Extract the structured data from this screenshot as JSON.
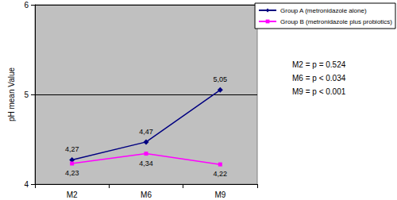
{
  "chart_data": {
    "type": "line",
    "y_label": "pH mean Value",
    "categories": [
      "M2",
      "M6",
      "M9"
    ],
    "series": [
      {
        "name": "Group A (metronidazole alone)",
        "color": "#000080",
        "marker": "diamond",
        "values": [
          4.27,
          4.47,
          5.05
        ],
        "value_labels": [
          "4,27",
          "4,47",
          "5,05"
        ]
      },
      {
        "name": "Group B (metronidazole plus probiotics)",
        "color": "#ff00ff",
        "marker": "square",
        "values": [
          4.23,
          4.34,
          4.22
        ],
        "value_labels": [
          "4,23",
          "4,34",
          "4,22"
        ]
      }
    ],
    "ylim": [
      4,
      6
    ],
    "yticks": [
      4,
      5,
      6
    ],
    "grid": true,
    "data_labels": true,
    "legend": "top-right",
    "annotations": [
      "M2 = p = 0.524",
      "M6 = p < 0.034",
      "M9 = p < 0.001"
    ]
  }
}
